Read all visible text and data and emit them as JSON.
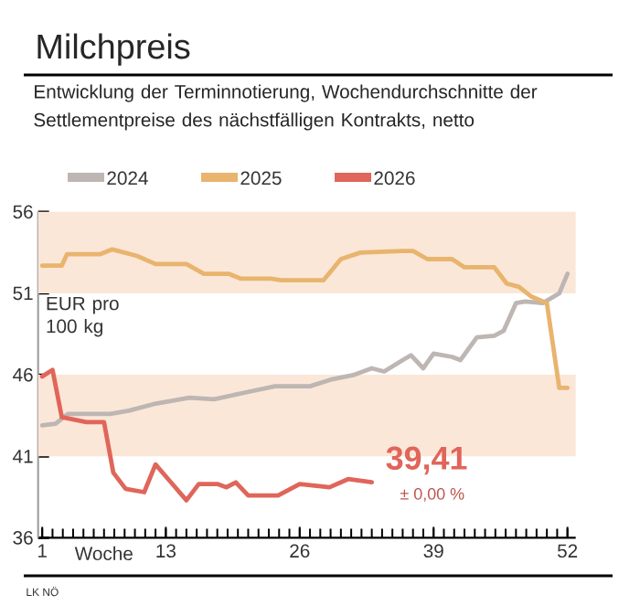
{
  "chart_data": {
    "type": "line",
    "title": "Milchpreis",
    "subtitle": "Entwicklung der Terminnotierung, Wochendurchschnitte der Settlementpreise des nächstfälligen Kontrakts, netto",
    "xlabel": "Woche",
    "ylabel": "EUR pro 100 kg",
    "xlim": [
      0.6,
      52.8
    ],
    "xticks": [
      1,
      13,
      26,
      39,
      52
    ],
    "ylim": [
      36,
      56
    ],
    "yticks": [
      36,
      41,
      46,
      51,
      56
    ],
    "legend": "top",
    "grid": false,
    "bands": [
      {
        "axis": "y",
        "from": 51,
        "to": 56,
        "color": "#fbe7d8"
      },
      {
        "axis": "y",
        "from": 41,
        "to": 46,
        "color": "#fbe7d8"
      }
    ],
    "series": [
      {
        "name": "2024",
        "color": "#bdb6b3",
        "x": [
          1,
          2.3,
          3.5,
          7.6,
          9.4,
          11.8,
          15.3,
          17.7,
          20.6,
          23.6,
          27,
          29,
          31.3,
          33,
          34.2,
          36,
          36.8,
          38,
          39,
          40.8,
          41.6,
          43.2,
          44.9,
          45.8,
          47,
          47.9,
          49.6,
          51.2,
          52
        ],
        "values": [
          42.9,
          43.0,
          43.6,
          43.6,
          43.8,
          44.2,
          44.6,
          44.5,
          44.9,
          45.3,
          45.3,
          45.7,
          46.0,
          46.4,
          46.2,
          46.9,
          47.2,
          46.4,
          47.3,
          47.1,
          46.9,
          48.3,
          48.4,
          48.7,
          50.4,
          50.5,
          50.4,
          51.0,
          52.2
        ]
      },
      {
        "name": "2025",
        "color": "#e8b46e",
        "x": [
          1,
          2.9,
          3.4,
          6.6,
          7.8,
          10.2,
          12,
          15,
          16.7,
          19.1,
          20.3,
          23.2,
          24.2,
          26,
          28.3,
          30,
          31.9,
          36,
          37,
          38.4,
          40.8,
          42,
          44.9,
          46.1,
          47.3,
          48.5,
          50,
          51.2,
          52
        ],
        "values": [
          52.7,
          52.7,
          53.4,
          53.4,
          53.7,
          53.3,
          52.8,
          52.8,
          52.2,
          52.2,
          51.9,
          51.9,
          51.8,
          51.8,
          51.8,
          53.1,
          53.5,
          53.6,
          53.6,
          53.1,
          53.1,
          52.6,
          52.6,
          51.6,
          51.4,
          50.8,
          50.4,
          45.2,
          45.2
        ]
      },
      {
        "name": "2026",
        "color": "#e0655a",
        "x": [
          1,
          2,
          2.9,
          5.3,
          7,
          7.9,
          9.1,
          10.9,
          12,
          13.5,
          15,
          16.2,
          18,
          18.9,
          19.8,
          21,
          23.9,
          26,
          28.9,
          30.7,
          33
        ],
        "values": [
          45.9,
          46.3,
          43.4,
          43.1,
          43.1,
          40.0,
          39.0,
          38.8,
          40.5,
          39.4,
          38.3,
          39.3,
          39.3,
          39.1,
          39.4,
          38.6,
          38.6,
          39.3,
          39.1,
          39.6,
          39.41
        ]
      }
    ],
    "annotations": [
      {
        "text": "39,41",
        "x": 33,
        "y": 39.41
      },
      {
        "text": "± 0,00 %",
        "x": 33,
        "y": 39.41
      },
      "LK NÖ"
    ]
  }
}
